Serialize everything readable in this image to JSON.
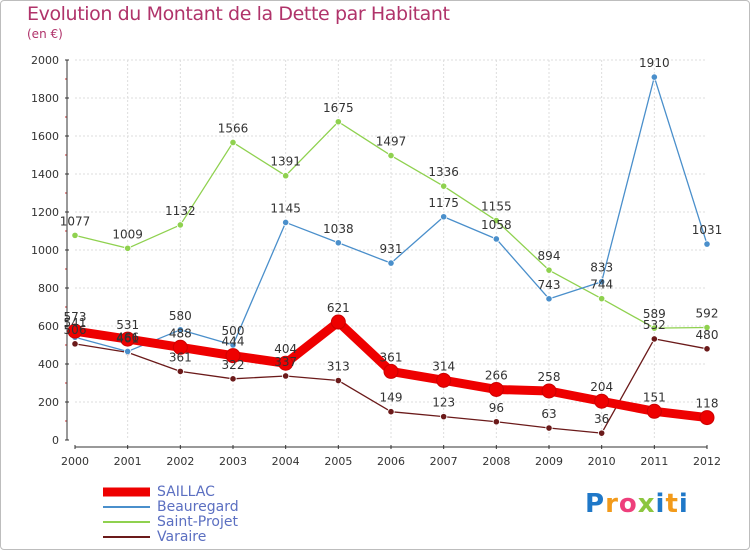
{
  "title": "Evolution du Montant de la Dette par Habitant",
  "unit": "(en €)",
  "logo": {
    "text": "Proxiti",
    "colors": [
      "#1f78c8",
      "#f29a1a",
      "#ee3f7c",
      "#8cc63f",
      "#1f78c8",
      "#f29a1a",
      "#1f78c8"
    ]
  },
  "chart_data": {
    "type": "line",
    "title": "Evolution du Montant de la Dette par Habitant",
    "ylabel": "(en €)",
    "xlabel": "",
    "x": [
      "2000",
      "2001",
      "2002",
      "2003",
      "2004",
      "2005",
      "2006",
      "2007",
      "2008",
      "2009",
      "2010",
      "2011",
      "2012"
    ],
    "ylim": [
      0,
      2000
    ],
    "yticks": [
      "0",
      "200",
      "400",
      "600",
      "800",
      "1000",
      "1200",
      "1400",
      "1600",
      "1800",
      "2000"
    ],
    "grid": true,
    "legend": "bottom-left",
    "series": [
      {
        "name": "SAILLAC",
        "color": "#ee0000",
        "values": [
          573,
          531,
          488,
          444,
          404,
          621,
          361,
          314,
          266,
          258,
          204,
          151,
          118
        ],
        "labels": [
          "573",
          "531",
          "488",
          "444",
          "404",
          "621",
          "361",
          "314",
          "266",
          "258",
          "204",
          "151",
          "118"
        ]
      },
      {
        "name": "Beauregard",
        "color": "#4a8fcb",
        "values": [
          541,
          466,
          580,
          500,
          1145,
          1038,
          931,
          1175,
          1058,
          743,
          833,
          1910,
          1031
        ],
        "labels": [
          "541",
          "466",
          "580",
          "500",
          "1145",
          "1038",
          "931",
          "1175",
          "1058",
          "743",
          "833",
          "1910",
          "1031"
        ]
      },
      {
        "name": "Saint-Projet",
        "color": "#8fd14f",
        "values": [
          1077,
          1009,
          1132,
          1566,
          1391,
          1675,
          1497,
          1336,
          1155,
          894,
          744,
          589,
          592
        ],
        "labels": [
          "1077",
          "1009",
          "1132",
          "1566",
          "1391",
          "1675",
          "1497",
          "1336",
          "1155",
          "894",
          "744",
          "589",
          "592"
        ]
      },
      {
        "name": "Varaire",
        "color": "#6b1a1a",
        "values": [
          506,
          461,
          361,
          322,
          337,
          313,
          149,
          123,
          96,
          63,
          36,
          532,
          480
        ],
        "labels": [
          "506",
          "461",
          "361",
          "322",
          "337",
          "313",
          "149",
          "123",
          "96",
          "63",
          "36",
          "532",
          "480"
        ]
      }
    ]
  }
}
